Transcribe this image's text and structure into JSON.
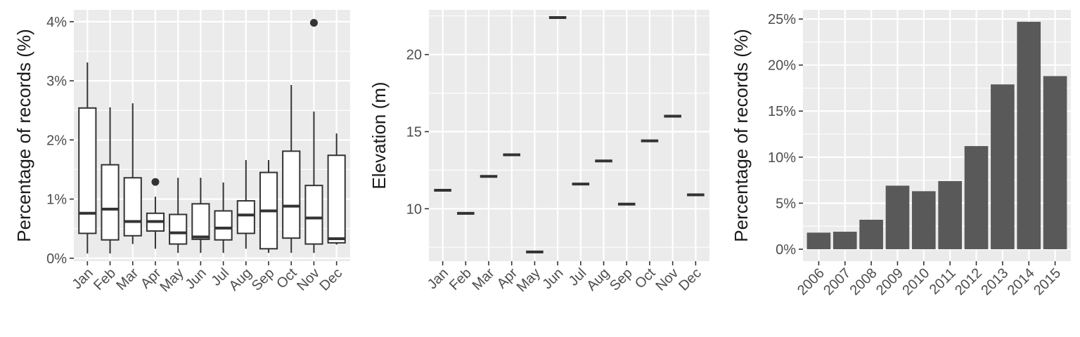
{
  "chart_data": [
    {
      "type": "box",
      "ylabel": "Percentage of records (%)",
      "ylim": [
        -0.05,
        4.2
      ],
      "yticks": [
        0,
        1,
        2,
        3,
        4
      ],
      "ytick_labels": [
        "0%",
        "1%",
        "2%",
        "3%",
        "4%"
      ],
      "grid": true,
      "categories": [
        "Jan",
        "Feb",
        "Mar",
        "Apr",
        "May",
        "Jun",
        "Jul",
        "Aug",
        "Sep",
        "Oct",
        "Nov",
        "Dec"
      ],
      "boxes": [
        {
          "low": 0.08,
          "q1": 0.42,
          "median": 0.76,
          "q3": 2.54,
          "high": 3.31,
          "outliers": []
        },
        {
          "low": 0.08,
          "q1": 0.31,
          "median": 0.83,
          "q3": 1.58,
          "high": 2.55,
          "outliers": []
        },
        {
          "low": 0.24,
          "q1": 0.38,
          "median": 0.62,
          "q3": 1.36,
          "high": 2.62,
          "outliers": []
        },
        {
          "low": 0.16,
          "q1": 0.46,
          "median": 0.62,
          "q3": 0.76,
          "high": 1.04,
          "outliers": [
            1.29
          ]
        },
        {
          "low": 0.09,
          "q1": 0.24,
          "median": 0.43,
          "q3": 0.74,
          "high": 1.36,
          "outliers": []
        },
        {
          "low": 0.09,
          "q1": 0.32,
          "median": 0.36,
          "q3": 0.92,
          "high": 1.36,
          "outliers": []
        },
        {
          "low": 0.09,
          "q1": 0.31,
          "median": 0.51,
          "q3": 0.8,
          "high": 1.28,
          "outliers": []
        },
        {
          "low": 0.16,
          "q1": 0.42,
          "median": 0.73,
          "q3": 0.97,
          "high": 1.66,
          "outliers": []
        },
        {
          "low": 0.09,
          "q1": 0.16,
          "median": 0.8,
          "q3": 1.45,
          "high": 1.66,
          "outliers": []
        },
        {
          "low": 0.09,
          "q1": 0.34,
          "median": 0.88,
          "q3": 1.81,
          "high": 2.93,
          "outliers": []
        },
        {
          "low": 0.09,
          "q1": 0.24,
          "median": 0.68,
          "q3": 1.23,
          "high": 2.48,
          "outliers": [
            3.98
          ]
        },
        {
          "low": 0.23,
          "q1": 0.26,
          "median": 0.33,
          "q3": 1.74,
          "high": 2.11,
          "outliers": []
        }
      ]
    },
    {
      "type": "box",
      "ylabel": "Elevation (m)",
      "ylim": [
        6.6,
        22.9
      ],
      "yticks": [
        10,
        15,
        20
      ],
      "ytick_labels": [
        "10",
        "15",
        "20"
      ],
      "grid": true,
      "categories": [
        "Jan",
        "Feb",
        "Mar",
        "Apr",
        "May",
        "Jun",
        "Jul",
        "Aug",
        "Sep",
        "Oct",
        "Nov",
        "Dec"
      ],
      "values": [
        11.2,
        9.7,
        12.1,
        13.5,
        7.2,
        22.4,
        11.6,
        13.1,
        10.3,
        14.4,
        16.0,
        10.9
      ]
    },
    {
      "type": "bar",
      "ylabel": "Percentage of records (%)",
      "ylim": [
        -1.3,
        26.0
      ],
      "yticks": [
        0,
        5,
        10,
        15,
        20,
        25
      ],
      "ytick_labels": [
        "0%",
        "5%",
        "10%",
        "15%",
        "20%",
        "25%"
      ],
      "grid": true,
      "categories": [
        "2006",
        "2007",
        "2008",
        "2009",
        "2010",
        "2011",
        "2012",
        "2013",
        "2014",
        "2015"
      ],
      "values": [
        1.8,
        1.9,
        3.2,
        6.9,
        6.3,
        7.4,
        11.2,
        17.9,
        24.7,
        18.8
      ],
      "bar_color": "#595959"
    }
  ],
  "colors": {
    "panel_bg": "#ebebeb",
    "grid": "#ffffff",
    "ink": "#333333",
    "tick_text": "#4d4d4d",
    "title_text": "#1a1a1a"
  }
}
